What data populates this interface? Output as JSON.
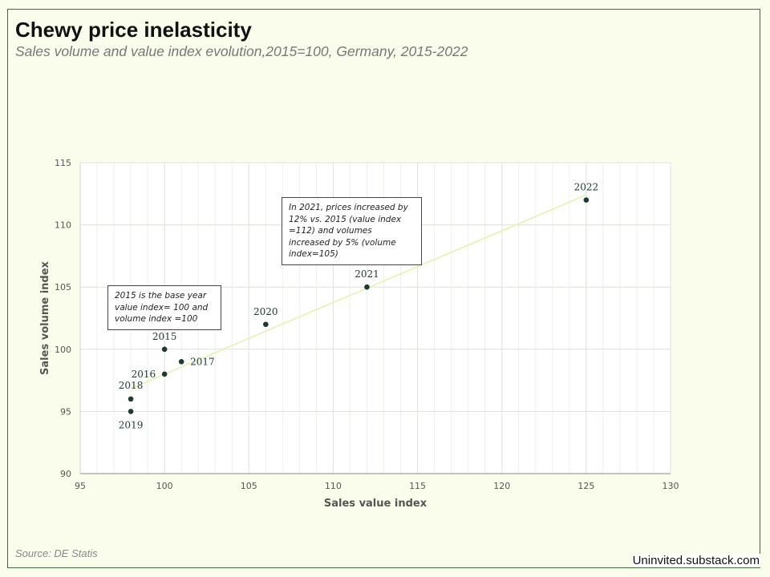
{
  "header": {
    "title": "Chewy price inelasticity",
    "subtitle": "Sales volume and value index evolution,2015=100, Germany, 2015-2022"
  },
  "footer": {
    "source": "Source: DE Statis",
    "credit": "Uninvited.substack.com"
  },
  "annotations": {
    "base_year": "2015 is the base year value index= 100 and volume index =100",
    "year_2021": "In 2021, prices increased by 12% vs. 2015 (value index =112) and volumes increased by 5% (volume index=105)"
  },
  "colors": {
    "marker": "#1d3b30",
    "trendline": "#e3f2a8",
    "grid": "#dde2d8",
    "background": "#fbfdec"
  },
  "chart_data": {
    "type": "scatter",
    "xlabel": "Sales value index",
    "ylabel": "Sales volume index",
    "xlim": [
      95,
      130
    ],
    "ylim": [
      90,
      115
    ],
    "xticks": [
      95,
      100,
      105,
      110,
      115,
      120,
      125,
      130
    ],
    "yticks": [
      90,
      95,
      100,
      105,
      110,
      115
    ],
    "grid": true,
    "trendline": true,
    "points": [
      {
        "label": "2015",
        "x": 100,
        "y": 100
      },
      {
        "label": "2016",
        "x": 100,
        "y": 98
      },
      {
        "label": "2017",
        "x": 101,
        "y": 99
      },
      {
        "label": "2018",
        "x": 98,
        "y": 96
      },
      {
        "label": "2019",
        "x": 98,
        "y": 95
      },
      {
        "label": "2020",
        "x": 106,
        "y": 102
      },
      {
        "label": "2021",
        "x": 112,
        "y": 105
      },
      {
        "label": "2022",
        "x": 125,
        "y": 112
      }
    ]
  }
}
